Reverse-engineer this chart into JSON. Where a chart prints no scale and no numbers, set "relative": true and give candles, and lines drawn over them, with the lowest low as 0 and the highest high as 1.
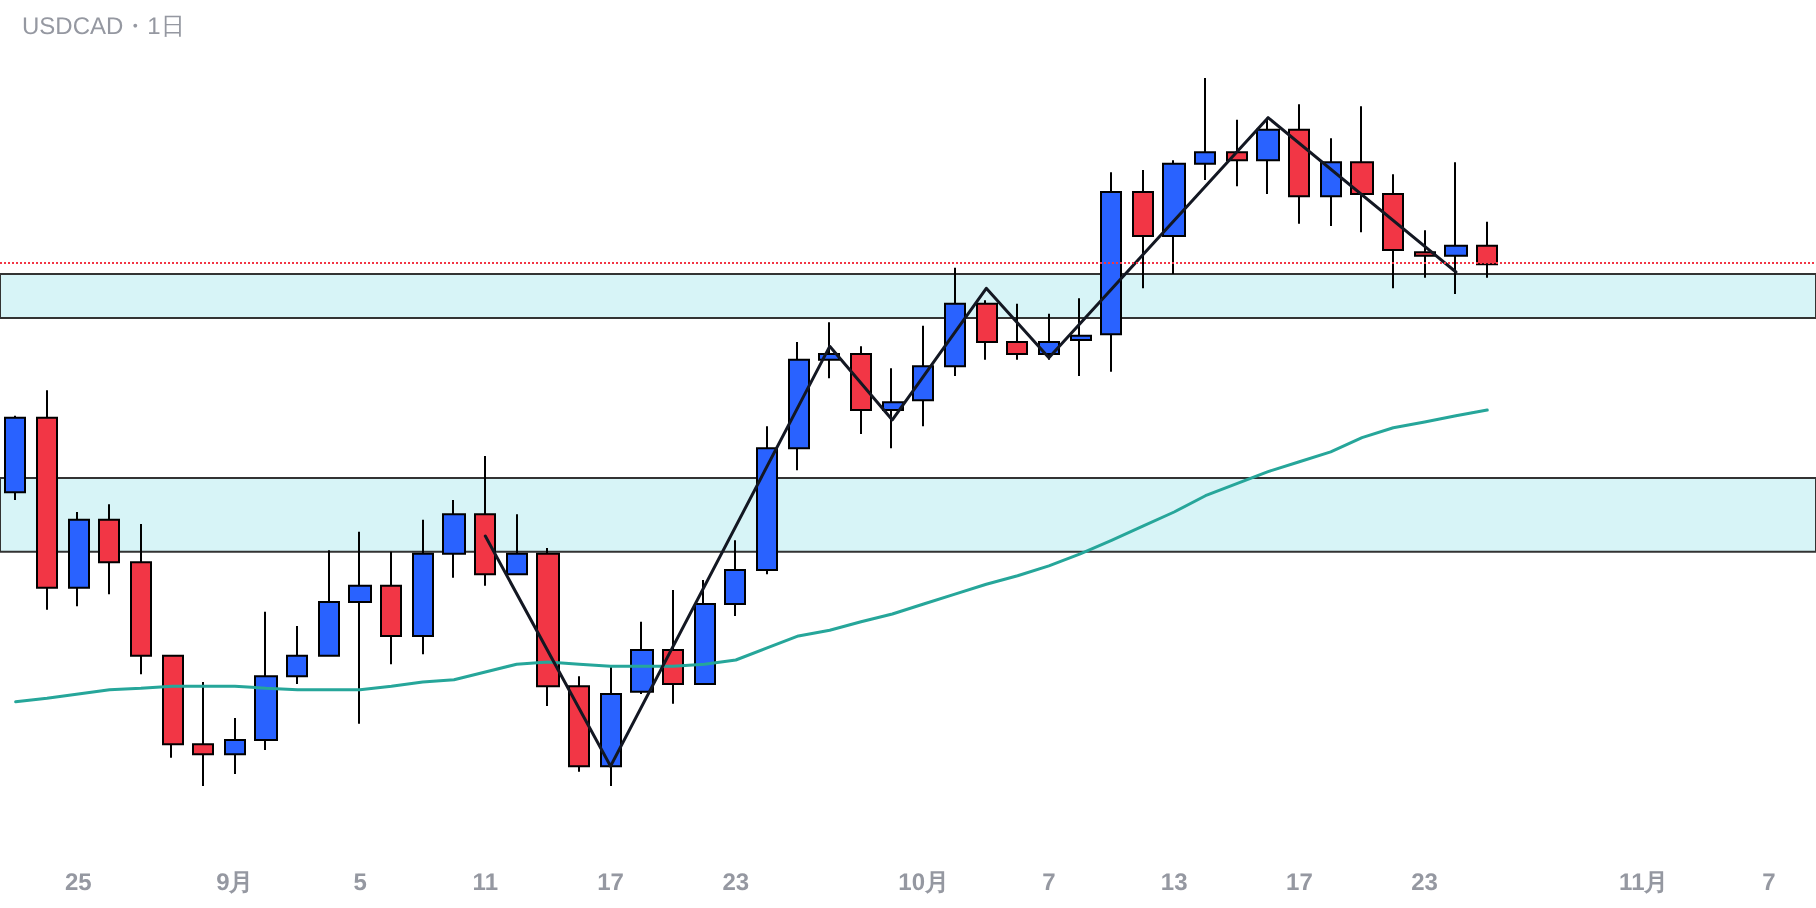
{
  "chart_data": {
    "type": "candlestick",
    "title": "USDCAD・1日",
    "relative": true,
    "tick_labels": "x",
    "marker": "none",
    "categories": [
      null,
      null,
      "25",
      null,
      null,
      null,
      null,
      "9月",
      null,
      null,
      null,
      "5",
      null,
      null,
      null,
      "11",
      null,
      null,
      null,
      "17",
      null,
      null,
      null,
      "23",
      null,
      null,
      null,
      null,
      null,
      "10月",
      null,
      null,
      null,
      "7",
      null,
      null,
      null,
      "13",
      null,
      null,
      null,
      "17",
      null,
      null,
      null,
      "23",
      null,
      null,
      null,
      null,
      null,
      null,
      "11月",
      null,
      null,
      null,
      "7",
      null
    ],
    "series": [
      {
        "colors": [
          "#2962ff",
          "#f23645",
          "#2962ff",
          "#f23645",
          "#f23645",
          "#f23645",
          "#f23645",
          "#2962ff",
          "#2962ff",
          "#2962ff",
          "#2962ff",
          "#2962ff",
          "#f23645",
          "#2962ff",
          "#2962ff",
          "#f23645",
          "#2962ff",
          "#f23645",
          "#f23645",
          "#2962ff",
          "#2962ff",
          "#f23645",
          "#2962ff",
          "#2962ff",
          "#2962ff",
          "#2962ff",
          "#2962ff",
          "#f23645",
          "#2962ff",
          "#2962ff",
          "#2962ff",
          "#f23645",
          "#f23645",
          "#2962ff",
          "#2962ff",
          "#2962ff",
          "#f23645",
          "#2962ff",
          "#2962ff",
          "#f23645",
          "#2962ff",
          "#f23645",
          "#2962ff",
          "#f23645",
          "#f23645",
          "#f23645",
          "#2962ff",
          "#f23645",
          null,
          null,
          null,
          null,
          null,
          null,
          null,
          null,
          null,
          null
        ],
        "ohlc": [
          [
            0.415,
            0.523,
            0.404,
            0.52
          ],
          [
            0.52,
            0.559,
            0.249,
            0.28
          ],
          [
            0.28,
            0.387,
            0.254,
            0.376
          ],
          [
            0.376,
            0.398,
            0.271,
            0.316
          ],
          [
            0.316,
            0.37,
            0.158,
            0.184
          ],
          [
            0.184,
            0.184,
            0.04,
            0.059
          ],
          [
            0.059,
            0.147,
            0,
            0.045
          ],
          [
            0.045,
            0.096,
            0.017,
            0.065
          ],
          [
            0.065,
            0.246,
            0.051,
            0.155
          ],
          [
            0.155,
            0.226,
            0.144,
            0.184
          ],
          [
            0.184,
            0.333,
            0.184,
            0.26
          ],
          [
            0.26,
            0.359,
            0.088,
            0.283
          ],
          [
            0.283,
            0.331,
            0.172,
            0.212
          ],
          [
            0.212,
            0.376,
            0.186,
            0.328
          ],
          [
            0.328,
            0.404,
            0.294,
            0.384
          ],
          [
            0.384,
            0.466,
            0.283,
            0.299
          ],
          [
            0.299,
            0.384,
            0.299,
            0.328
          ],
          [
            0.328,
            0.336,
            0.113,
            0.141
          ],
          [
            0.141,
            0.155,
            0.02,
            0.028
          ],
          [
            0.028,
            0.17,
            0,
            0.13
          ],
          [
            0.133,
            0.232,
            0.13,
            0.192
          ],
          [
            0.192,
            0.277,
            0.116,
            0.144
          ],
          [
            0.144,
            0.291,
            0.144,
            0.257
          ],
          [
            0.257,
            0.347,
            0.24,
            0.305
          ],
          [
            0.305,
            0.508,
            0.299,
            0.477
          ],
          [
            0.477,
            0.627,
            0.446,
            0.602
          ],
          [
            0.602,
            0.655,
            0.576,
            0.61
          ],
          [
            0.61,
            0.621,
            0.497,
            0.531
          ],
          [
            0.531,
            0.59,
            0.477,
            0.542
          ],
          [
            0.545,
            0.65,
            0.508,
            0.593
          ],
          [
            0.593,
            0.732,
            0.579,
            0.681
          ],
          [
            0.681,
            0.686,
            0.602,
            0.627
          ],
          [
            0.627,
            0.681,
            0.602,
            0.61
          ],
          [
            0.61,
            0.667,
            0.602,
            0.627
          ],
          [
            0.63,
            0.689,
            0.579,
            0.636
          ],
          [
            0.638,
            0.867,
            0.585,
            0.839
          ],
          [
            0.839,
            0.87,
            0.703,
            0.777
          ],
          [
            0.777,
            0.884,
            0.723,
            0.879
          ],
          [
            0.879,
            1,
            0.856,
            0.895
          ],
          [
            0.895,
            0.941,
            0.847,
            0.884
          ],
          [
            0.884,
            0.944,
            0.836,
            0.927
          ],
          [
            0.927,
            0.963,
            0.794,
            0.833
          ],
          [
            0.833,
            0.915,
            0.791,
            0.881
          ],
          [
            0.881,
            0.96,
            0.782,
            0.836
          ],
          [
            0.836,
            0.864,
            0.703,
            0.757
          ],
          [
            0.754,
            0.785,
            0.718,
            0.749
          ],
          [
            0.749,
            0.881,
            0.695,
            0.763
          ],
          [
            0.763,
            0.797,
            0.718,
            0.737
          ],
          null,
          null,
          null,
          null,
          null,
          null,
          null,
          null,
          null,
          null
        ]
      },
      {
        "type": "line",
        "color": "#26a69a",
        "values": [
          0.119,
          0.124,
          0.13,
          0.136,
          0.138,
          0.141,
          0.141,
          0.141,
          0.138,
          0.136,
          0.136,
          0.136,
          0.141,
          0.147,
          0.15,
          0.161,
          0.172,
          0.175,
          0.172,
          0.169,
          0.169,
          0.169,
          0.172,
          0.178,
          0.195,
          0.212,
          0.22,
          0.232,
          0.243,
          0.257,
          0.271,
          0.285,
          0.297,
          0.311,
          0.328,
          0.347,
          0.367,
          0.387,
          0.41,
          0.427,
          0.444,
          0.458,
          0.472,
          0.492,
          0.506,
          0.514,
          0.523,
          0.531,
          null,
          null,
          null,
          null,
          null,
          null,
          null,
          null,
          null,
          null
        ]
      },
      {
        "type": "line",
        "color": "#131722",
        "values": [
          null,
          null,
          null,
          null,
          null,
          null,
          null,
          null,
          null,
          null,
          null,
          null,
          null,
          null,
          null,
          0.353,
          null,
          null,
          null,
          0.028,
          null,
          null,
          null,
          null,
          null,
          null,
          0.621,
          null,
          0.517,
          null,
          null,
          0.703,
          null,
          0.605,
          null,
          null,
          null,
          null,
          null,
          null,
          0.944,
          null,
          null,
          null,
          null,
          null,
          0.726,
          null,
          null,
          null,
          null,
          null,
          null,
          null,
          null,
          null,
          null,
          null
        ]
      }
    ],
    "bands": [
      {
        "axis": "y",
        "from": 0.661,
        "to": 0.723,
        "color": "#d7f4f7"
      },
      {
        "axis": "y",
        "from": 0.331,
        "to": 0.435,
        "color": "#d7f4f7"
      }
    ],
    "ref_lines": [
      {
        "axis": "y",
        "value": 0.737,
        "color": "#f23645",
        "line_style": "dotted"
      }
    ]
  }
}
